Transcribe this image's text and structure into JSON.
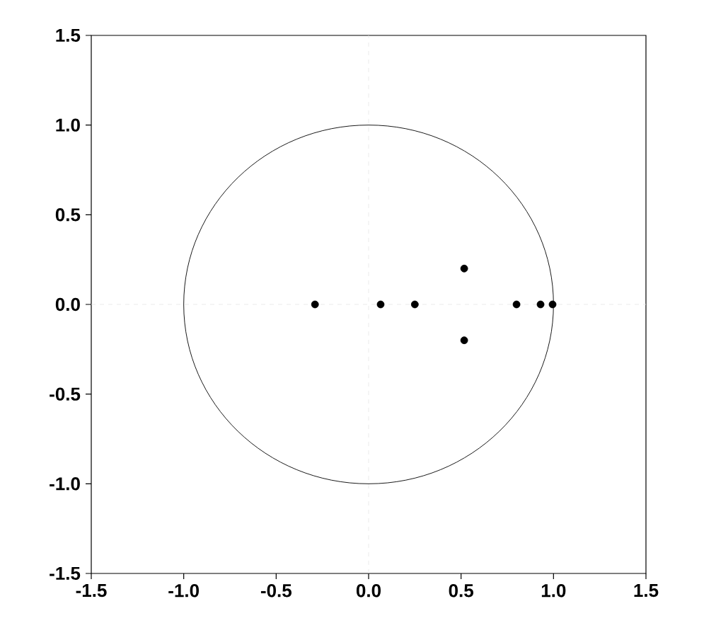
{
  "chart_data": {
    "type": "scatter",
    "marker": "circle",
    "xlim": [
      -1.5,
      1.5
    ],
    "ylim": [
      -1.5,
      1.5
    ],
    "xticks": [
      {
        "value": -1.5,
        "label": "-1.5"
      },
      {
        "value": -1,
        "label": "-1.0"
      },
      {
        "value": -0.5,
        "label": "-0.5"
      },
      {
        "value": 0,
        "label": "0.0"
      },
      {
        "value": 0.5,
        "label": "0.5"
      },
      {
        "value": 1,
        "label": "1.0"
      },
      {
        "value": 1.5,
        "label": "1.5"
      }
    ],
    "yticks": [
      {
        "value": -1.5,
        "label": "-1.5"
      },
      {
        "value": -1,
        "label": "-1.0"
      },
      {
        "value": -0.5,
        "label": "-0.5"
      },
      {
        "value": 0,
        "label": "0.0"
      },
      {
        "value": 0.5,
        "label": "0.5"
      },
      {
        "value": 1,
        "label": "1.0"
      },
      {
        "value": 1.5,
        "label": "1.5"
      }
    ],
    "series": [
      {
        "color": "#000000",
        "x": [
          -0.29,
          0.065,
          0.25,
          0.517,
          0.517,
          0.8,
          0.93,
          0.995
        ],
        "values": [
          0,
          0,
          0,
          0.2,
          -0.2,
          0,
          0,
          0
        ]
      }
    ]
  }
}
